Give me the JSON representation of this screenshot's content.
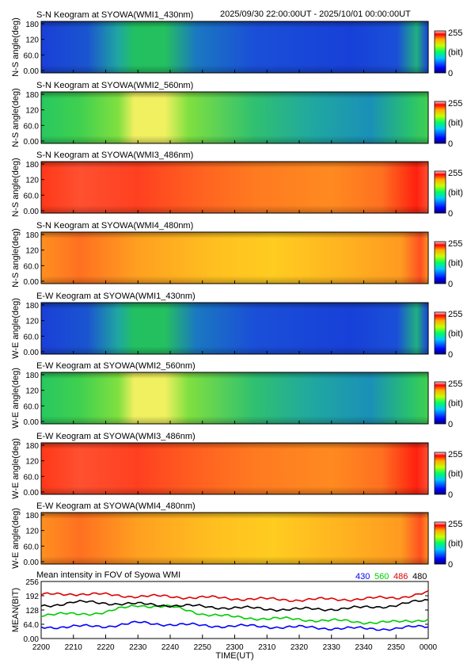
{
  "header": {
    "time_range": "2025/09/30 22:00:00UT - 2025/10/01 00:00:00UT"
  },
  "keograms": [
    {
      "title": "S-N Keogram at SYOWA(WMI1_430nm)",
      "ylabel": "N-S angle(deg)",
      "yticks": [
        "180",
        "120",
        "60.0",
        "0.00"
      ],
      "colorbar": {
        "max": "255",
        "unit": "(bit)",
        "min": "0"
      },
      "profile": "blue430"
    },
    {
      "title": "S-N Keogram at SYOWA(WMI2_560nm)",
      "ylabel": "N-S angle(deg)",
      "yticks": [
        "180",
        "120",
        "60.0",
        "0.00"
      ],
      "colorbar": {
        "max": "255",
        "unit": "(bit)",
        "min": "0"
      },
      "profile": "green560"
    },
    {
      "title": "S-N Keogram at SYOWA(WMI3_486nm)",
      "ylabel": "N-S angle(deg)",
      "yticks": [
        "180",
        "120",
        "60.0",
        "0.00"
      ],
      "colorbar": {
        "max": "255",
        "unit": "(bit)",
        "min": "0"
      },
      "profile": "red486"
    },
    {
      "title": "S-N Keogram at SYOWA(WMI4_480nm)",
      "ylabel": "N-S angle(deg)",
      "yticks": [
        "180",
        "120",
        "60.0",
        "0.00"
      ],
      "colorbar": {
        "max": "255",
        "unit": "(bit)",
        "min": "0"
      },
      "profile": "orange480"
    },
    {
      "title": "E-W Keogram at SYOWA(WMI1_430nm)",
      "ylabel": "W-E angle(deg)",
      "yticks": [
        "180",
        "120",
        "60.0",
        "0.00"
      ],
      "colorbar": {
        "max": "255",
        "unit": "(bit)",
        "min": "0"
      },
      "profile": "blue430"
    },
    {
      "title": "E-W Keogram at SYOWA(WMI2_560nm)",
      "ylabel": "W-E angle(deg)",
      "yticks": [
        "180",
        "120",
        "60.0",
        "0.00"
      ],
      "colorbar": {
        "max": "255",
        "unit": "(bit)",
        "min": "0"
      },
      "profile": "green560"
    },
    {
      "title": "E-W Keogram at SYOWA(WMI3_486nm)",
      "ylabel": "W-E angle(deg)",
      "yticks": [
        "180",
        "120",
        "60.0",
        "0.00"
      ],
      "colorbar": {
        "max": "255",
        "unit": "(bit)",
        "min": "0"
      },
      "profile": "red486"
    },
    {
      "title": "E-W Keogram at SYOWA(WMI4_480nm)",
      "ylabel": "W-E angle(deg)",
      "yticks": [
        "180",
        "120",
        "60.0",
        "0.00"
      ],
      "colorbar": {
        "max": "255",
        "unit": "(bit)",
        "min": "0"
      },
      "profile": "orange480"
    }
  ],
  "chart_data": {
    "type": "line",
    "title": "Mean intensity in FOV of Syowa WMI",
    "ylabel": "MEAN(BIT)",
    "xlabel": "TIME(UT)",
    "ylim": [
      0,
      256
    ],
    "yticks": [
      "256",
      "192",
      "128",
      "64.0",
      "0.00"
    ],
    "ytick_values": [
      256,
      192,
      128,
      64,
      0
    ],
    "xlim": [
      "2200",
      "0000"
    ],
    "xticks": [
      "2200",
      "2210",
      "2220",
      "2230",
      "2240",
      "2250",
      "2300",
      "2310",
      "2320",
      "2330",
      "2340",
      "2350",
      "0000"
    ],
    "x": [
      "2200",
      "2210",
      "2220",
      "2230",
      "2240",
      "2250",
      "2300",
      "2310",
      "2320",
      "2330",
      "2340",
      "2350",
      "0000"
    ],
    "series": [
      {
        "name": "430",
        "color": "#0000ff",
        "values": [
          52,
          53,
          56,
          70,
          64,
          58,
          56,
          54,
          50,
          47,
          44,
          45,
          55
        ]
      },
      {
        "name": "560",
        "color": "#00cc00",
        "values": [
          107,
          109,
          118,
          150,
          142,
          112,
          95,
          90,
          86,
          80,
          74,
          72,
          88
        ]
      },
      {
        "name": "486",
        "color": "#dd0000",
        "values": [
          195,
          202,
          196,
          190,
          188,
          184,
          180,
          176,
          174,
          176,
          178,
          184,
          205
        ]
      },
      {
        "name": "480",
        "color": "#000000",
        "values": [
          145,
          163,
          160,
          154,
          150,
          143,
          138,
          133,
          131,
          133,
          138,
          150,
          172
        ]
      }
    ]
  }
}
